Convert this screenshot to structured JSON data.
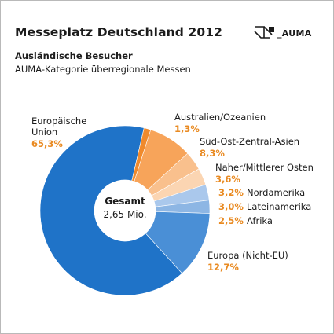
{
  "header": {
    "title": "Messeplatz Deutschland 2012",
    "subtitle": "Ausländische Besucher",
    "subtitle2": "AUMA-Kategorie überregionale Messen",
    "logo_text": "_AUMA"
  },
  "colors": {
    "blue_dark": "#1f73c8",
    "blue_mid": "#4a8fd6",
    "blue_light": "#8db6e4",
    "blue_pale": "#aac8ec",
    "orange_dark": "#f08a2c",
    "orange_mid": "#f7a45a",
    "orange_light": "#f9c08d",
    "orange_pale": "#fbd5b2",
    "pct_text": "#e98a21"
  },
  "chart_data": {
    "type": "pie",
    "title": "Ausländische Besucher",
    "center": {
      "title": "Gesamt",
      "value": "2,65 Mio."
    },
    "slices": [
      {
        "name": "Europäische Union",
        "label_lines": [
          "Europäische",
          "Union"
        ],
        "value": 65.3,
        "pct": "65,3%",
        "color": "#1f73c8"
      },
      {
        "name": "Australien/Ozeanien",
        "label_lines": [
          "Australien/Ozeanien"
        ],
        "value": 1.3,
        "pct": "1,3%",
        "color": "#f08a2c"
      },
      {
        "name": "Süd-Ost-Zentral-Asien",
        "label_lines": [
          "Süd-Ost-Zentral-Asien"
        ],
        "value": 8.3,
        "pct": "8,3%",
        "color": "#f7a45a"
      },
      {
        "name": "Naher/Mittlerer Osten",
        "label_lines": [
          "Naher/Mittlerer Osten"
        ],
        "value": 3.6,
        "pct": "3,6%",
        "color": "#f9c08d"
      },
      {
        "name": "Nordamerika",
        "label_lines": [
          "Nordamerika"
        ],
        "value": 3.2,
        "pct": "3,2%",
        "color": "#fbd5b2"
      },
      {
        "name": "Lateinamerika",
        "label_lines": [
          "Lateinamerika"
        ],
        "value": 3.0,
        "pct": "3,0%",
        "color": "#aac8ec"
      },
      {
        "name": "Afrika",
        "label_lines": [
          "Afrika"
        ],
        "value": 2.5,
        "pct": "2,5%",
        "color": "#8db6e4"
      },
      {
        "name": "Europa (Nicht-EU)",
        "label_lines": [
          "Europa (Nicht-EU)"
        ],
        "value": 12.7,
        "pct": "12,7%",
        "color": "#4a8fd6"
      }
    ]
  }
}
